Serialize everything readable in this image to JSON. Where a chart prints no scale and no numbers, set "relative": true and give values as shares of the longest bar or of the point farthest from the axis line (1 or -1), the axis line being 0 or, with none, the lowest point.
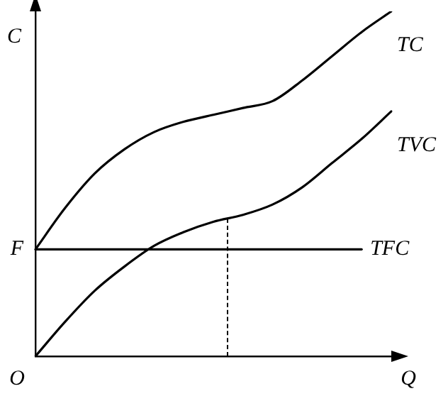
{
  "chart_data": {
    "type": "line",
    "relative": true,
    "xlabel": "Q",
    "ylabel": "C",
    "categories": [
      null,
      null,
      null,
      null,
      null,
      null,
      null,
      null,
      null,
      null,
      null,
      null,
      null
    ],
    "series": [
      {
        "name": "TC",
        "color": "#000000",
        "values": [
          0.31,
          0.43,
          0.53,
          0.6,
          0.65,
          0.68,
          0.7,
          0.72,
          0.74,
          0.8,
          0.87,
          0.94,
          1
        ]
      },
      {
        "name": "TVC",
        "color": "#000000",
        "values": [
          0,
          0.1,
          0.19,
          0.26,
          0.32,
          0.36,
          0.39,
          0.41,
          0.44,
          0.49,
          0.56,
          0.63,
          0.71
        ]
      },
      {
        "name": "TFC",
        "color": "#000000",
        "values": [
          0.31,
          0.31,
          0.31,
          0.31,
          0.31,
          0.31,
          0.31,
          0.31,
          0.31,
          0.31,
          0.31,
          0.31,
          null
        ]
      }
    ],
    "annotations": [
      "F",
      "O"
    ],
    "marker": "none",
    "line_style": "solid",
    "grid": false,
    "legend": false
  }
}
